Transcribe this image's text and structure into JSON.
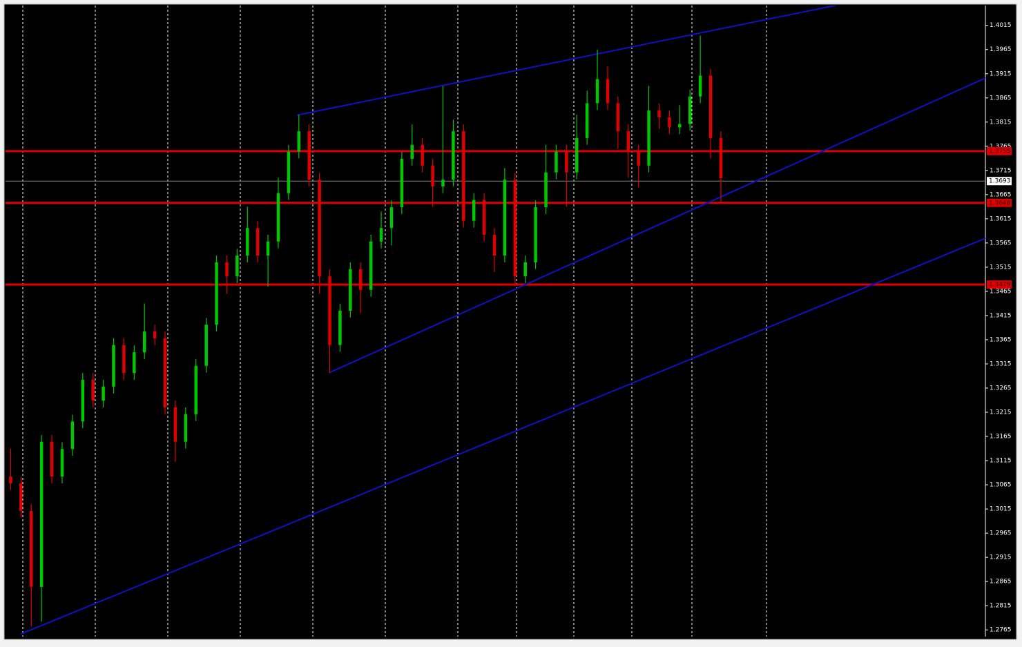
{
  "chart_data": {
    "type": "candlestick",
    "open": [
      1.3082,
      1.3068,
      1.3011,
      1.2854,
      1.3154,
      1.3082,
      1.3139,
      1.3196,
      1.3282,
      1.3239,
      1.3268,
      1.3354,
      1.3296,
      1.3339,
      1.3382,
      1.3368,
      1.3225,
      1.3154,
      1.3211,
      1.3311,
      1.3396,
      1.3525,
      1.3496,
      1.3539,
      1.3596,
      1.3539,
      1.3568,
      1.3668,
      1.3754,
      1.3796,
      1.3696,
      1.3496,
      1.3354,
      1.3425,
      1.3511,
      1.3468,
      1.3568,
      1.3596,
      1.3639,
      1.3739,
      1.3768,
      1.3725,
      1.3682,
      1.3696,
      1.3796,
      1.3611,
      1.3654,
      1.3582,
      1.3539,
      1.3696,
      1.3496,
      1.3525,
      1.3639,
      1.3711,
      1.3754,
      1.3711,
      1.3782,
      1.3854,
      1.3904,
      1.3854,
      1.3796,
      1.3754,
      1.3725,
      1.3839,
      1.3825,
      1.3804,
      1.3811,
      1.3868,
      1.3911,
      1.3782
    ],
    "high": [
      1.314,
      1.3082,
      1.3025,
      1.3168,
      1.3168,
      1.3153,
      1.321,
      1.3296,
      1.3296,
      1.3282,
      1.3368,
      1.3368,
      1.3353,
      1.344,
      1.3396,
      1.3382,
      1.3239,
      1.3225,
      1.3325,
      1.341,
      1.3539,
      1.3539,
      1.3553,
      1.364,
      1.361,
      1.3582,
      1.37,
      1.3768,
      1.383,
      1.381,
      1.371,
      1.351,
      1.3439,
      1.3525,
      1.3525,
      1.3582,
      1.363,
      1.3653,
      1.3753,
      1.381,
      1.3782,
      1.3739,
      1.389,
      1.382,
      1.381,
      1.3668,
      1.3668,
      1.3596,
      1.372,
      1.371,
      1.3539,
      1.3653,
      1.3768,
      1.3768,
      1.3768,
      1.383,
      1.388,
      1.3965,
      1.393,
      1.3868,
      1.381,
      1.3768,
      1.389,
      1.3853,
      1.3839,
      1.385,
      1.3882,
      1.3994,
      1.3925,
      1.3796
    ],
    "low": [
      1.3054,
      1.2997,
      1.2772,
      1.2782,
      1.3068,
      1.3068,
      1.3125,
      1.3182,
      1.3225,
      1.3225,
      1.3254,
      1.3282,
      1.3282,
      1.3325,
      1.3354,
      1.3211,
      1.3112,
      1.314,
      1.3197,
      1.3297,
      1.3382,
      1.346,
      1.3482,
      1.3525,
      1.3525,
      1.3475,
      1.3554,
      1.3654,
      1.374,
      1.3682,
      1.346,
      1.3296,
      1.334,
      1.3411,
      1.342,
      1.3454,
      1.3554,
      1.356,
      1.3625,
      1.3725,
      1.3711,
      1.364,
      1.3668,
      1.3682,
      1.3597,
      1.3597,
      1.3568,
      1.3505,
      1.3525,
      1.348,
      1.3482,
      1.3511,
      1.3625,
      1.3697,
      1.364,
      1.3697,
      1.3768,
      1.384,
      1.384,
      1.376,
      1.37,
      1.368,
      1.3711,
      1.38,
      1.379,
      1.379,
      1.3797,
      1.3854,
      1.374,
      1.365
    ],
    "close": [
      1.3068,
      1.3011,
      1.2854,
      1.3154,
      1.3082,
      1.3139,
      1.3196,
      1.3282,
      1.3239,
      1.3268,
      1.3354,
      1.3296,
      1.3339,
      1.3382,
      1.3368,
      1.3225,
      1.3154,
      1.3211,
      1.3311,
      1.3396,
      1.3525,
      1.3496,
      1.3539,
      1.3596,
      1.3539,
      1.3568,
      1.3668,
      1.3754,
      1.3796,
      1.3696,
      1.3496,
      1.3354,
      1.3425,
      1.3511,
      1.3468,
      1.3568,
      1.3596,
      1.3639,
      1.3739,
      1.3768,
      1.3725,
      1.3682,
      1.3696,
      1.3796,
      1.3611,
      1.3654,
      1.3582,
      1.3539,
      1.3696,
      1.3496,
      1.3525,
      1.3639,
      1.3711,
      1.3754,
      1.3711,
      1.3782,
      1.3854,
      1.3904,
      1.3854,
      1.3796,
      1.3754,
      1.3725,
      1.3839,
      1.3825,
      1.3804,
      1.3811,
      1.3868,
      1.3911,
      1.3782,
      1.3699
    ],
    "up_color": "#00c800",
    "down_color": "#e00000",
    "xlim": [
      -0.5,
      94.7
    ],
    "ylim": [
      1.2751,
      1.4056
    ],
    "yticks": [
      1.2765,
      1.2815,
      1.2865,
      1.2915,
      1.2965,
      1.3015,
      1.3065,
      1.3115,
      1.3165,
      1.3215,
      1.3265,
      1.3315,
      1.3365,
      1.3415,
      1.3465,
      1.3515,
      1.3565,
      1.3615,
      1.3665,
      1.3715,
      1.3765,
      1.3815,
      1.3865,
      1.3915,
      1.3965,
      1.4015
    ],
    "levels": [
      1.3755,
      1.3648,
      1.3479
    ],
    "level_color": "#e00000",
    "bid": 1.3693,
    "trendlines": [
      {
        "x": [
          27.82,
          80.17
        ],
        "y": [
          1.38293,
          1.40564
        ]
      },
      {
        "x": [
          30.91,
          94.74
        ],
        "y": [
          1.32964,
          1.39064
        ]
      },
      {
        "x": [
          0.98,
          94.74
        ],
        "y": [
          1.27564,
          1.3575
        ]
      }
    ],
    "trendline_color": "#1010c8"
  }
}
